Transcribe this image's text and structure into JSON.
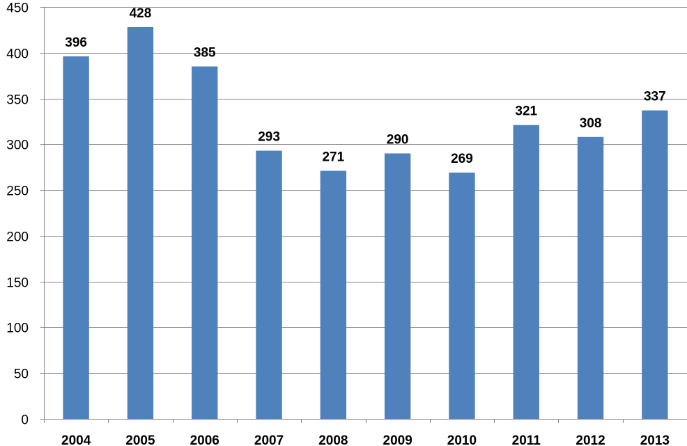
{
  "chart_data": {
    "type": "bar",
    "title": "",
    "xlabel": "",
    "ylabel": "",
    "categories": [
      "2004",
      "2005",
      "2006",
      "2007",
      "2008",
      "2009",
      "2010",
      "2011",
      "2012",
      "2013"
    ],
    "values": [
      396,
      428,
      385,
      293,
      271,
      290,
      269,
      321,
      308,
      337
    ],
    "ylim": [
      0,
      450
    ],
    "yticks": [
      0,
      50,
      100,
      150,
      200,
      250,
      300,
      350,
      400,
      450
    ],
    "grid": true,
    "legend": "none",
    "bar_color": "#4f81bd"
  }
}
